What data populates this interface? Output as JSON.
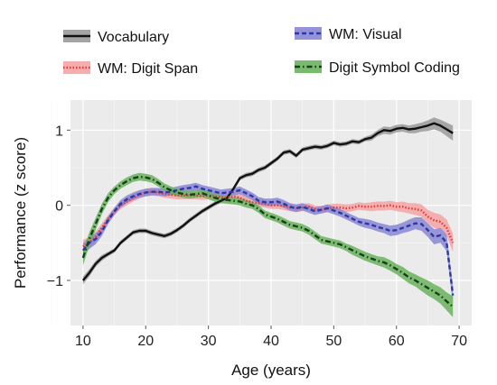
{
  "chart_data": {
    "type": "line",
    "xlabel": "Age (years)",
    "ylabel": "Performance (z score)",
    "xlim": [
      8,
      72
    ],
    "ylim": [
      -1.6,
      1.4
    ],
    "xticks": [
      10,
      20,
      30,
      40,
      50,
      60,
      70
    ],
    "yticks": [
      -1,
      0,
      1
    ],
    "ytick_labels": [
      "−1",
      "0",
      "1"
    ],
    "grid": true,
    "legend_position": "top",
    "series": [
      {
        "name": "Vocabulary",
        "color": "#111111",
        "band_color": "#9a9a9a",
        "line_style": "solid",
        "x": [
          10,
          11,
          12,
          13,
          14,
          15,
          16,
          17,
          18,
          19,
          20,
          21,
          22,
          23,
          24,
          25,
          26,
          27,
          28,
          29,
          30,
          31,
          32,
          33,
          34,
          35,
          36,
          37,
          38,
          39,
          40,
          41,
          42,
          43,
          44,
          45,
          46,
          47,
          48,
          49,
          50,
          51,
          52,
          53,
          54,
          55,
          56,
          57,
          58,
          59,
          60,
          61,
          62,
          63,
          64,
          65,
          66,
          67,
          68,
          69
        ],
        "y": [
          -1.0,
          -0.9,
          -0.78,
          -0.7,
          -0.65,
          -0.6,
          -0.5,
          -0.43,
          -0.36,
          -0.34,
          -0.34,
          -0.37,
          -0.39,
          -0.41,
          -0.38,
          -0.33,
          -0.27,
          -0.2,
          -0.14,
          -0.08,
          -0.03,
          0.02,
          0.06,
          0.1,
          0.22,
          0.36,
          0.4,
          0.42,
          0.47,
          0.5,
          0.56,
          0.62,
          0.7,
          0.72,
          0.66,
          0.74,
          0.76,
          0.78,
          0.77,
          0.79,
          0.83,
          0.81,
          0.82,
          0.85,
          0.84,
          0.88,
          0.9,
          0.96,
          1.0,
          0.99,
          1.02,
          1.03,
          1.01,
          1.02,
          1.04,
          1.06,
          1.09,
          1.06,
          1.01,
          0.96
        ],
        "band": [
          0.05,
          0.05,
          0.04,
          0.04,
          0.03,
          0.03,
          0.03,
          0.03,
          0.03,
          0.03,
          0.03,
          0.03,
          0.03,
          0.03,
          0.03,
          0.03,
          0.03,
          0.03,
          0.03,
          0.03,
          0.03,
          0.03,
          0.03,
          0.03,
          0.03,
          0.03,
          0.03,
          0.03,
          0.03,
          0.03,
          0.03,
          0.03,
          0.03,
          0.03,
          0.03,
          0.03,
          0.03,
          0.03,
          0.03,
          0.03,
          0.03,
          0.03,
          0.03,
          0.03,
          0.03,
          0.03,
          0.04,
          0.04,
          0.05,
          0.05,
          0.05,
          0.05,
          0.05,
          0.06,
          0.06,
          0.07,
          0.08,
          0.08,
          0.09,
          0.1
        ]
      },
      {
        "name": "WM: Digit Span",
        "color": "#e23a3a",
        "band_color": "#f4a4a4",
        "line_style": "dotted",
        "x": [
          10,
          11,
          12,
          13,
          14,
          15,
          16,
          17,
          18,
          19,
          20,
          21,
          22,
          23,
          24,
          25,
          26,
          27,
          28,
          29,
          30,
          31,
          32,
          33,
          34,
          35,
          36,
          37,
          38,
          39,
          40,
          41,
          42,
          43,
          44,
          45,
          46,
          47,
          48,
          49,
          50,
          51,
          52,
          53,
          54,
          55,
          56,
          57,
          58,
          59,
          60,
          61,
          62,
          63,
          64,
          65,
          66,
          67,
          68,
          69
        ],
        "y": [
          -0.55,
          -0.5,
          -0.42,
          -0.3,
          -0.18,
          -0.08,
          0.0,
          0.05,
          0.1,
          0.14,
          0.17,
          0.18,
          0.17,
          0.15,
          0.14,
          0.13,
          0.13,
          0.13,
          0.13,
          0.12,
          0.13,
          0.12,
          0.11,
          0.1,
          0.12,
          0.1,
          0.06,
          0.04,
          0.03,
          0.02,
          0.0,
          0.0,
          -0.01,
          -0.03,
          -0.04,
          -0.03,
          -0.02,
          -0.05,
          -0.06,
          -0.04,
          -0.03,
          -0.03,
          -0.04,
          -0.03,
          -0.01,
          -0.02,
          -0.02,
          -0.01,
          -0.01,
          0.0,
          -0.02,
          -0.02,
          -0.04,
          -0.05,
          -0.07,
          -0.15,
          -0.2,
          -0.22,
          -0.3,
          -0.5
        ],
        "band": [
          0.09,
          0.08,
          0.07,
          0.06,
          0.05,
          0.05,
          0.05,
          0.05,
          0.05,
          0.05,
          0.05,
          0.05,
          0.05,
          0.05,
          0.05,
          0.05,
          0.05,
          0.05,
          0.05,
          0.05,
          0.05,
          0.05,
          0.05,
          0.05,
          0.05,
          0.05,
          0.05,
          0.05,
          0.05,
          0.05,
          0.05,
          0.05,
          0.05,
          0.05,
          0.05,
          0.05,
          0.05,
          0.05,
          0.05,
          0.05,
          0.05,
          0.05,
          0.05,
          0.05,
          0.05,
          0.05,
          0.06,
          0.06,
          0.06,
          0.06,
          0.06,
          0.07,
          0.07,
          0.08,
          0.08,
          0.09,
          0.1,
          0.1,
          0.11,
          0.12
        ]
      },
      {
        "name": "WM: Visual",
        "color": "#2c3a9f",
        "band_color": "#8a86d6",
        "line_style": "dashed",
        "x": [
          10,
          11,
          12,
          13,
          14,
          15,
          16,
          17,
          18,
          19,
          20,
          21,
          22,
          23,
          24,
          25,
          26,
          27,
          28,
          29,
          30,
          31,
          32,
          33,
          34,
          35,
          36,
          37,
          38,
          39,
          40,
          41,
          42,
          43,
          44,
          45,
          46,
          47,
          48,
          49,
          50,
          51,
          52,
          53,
          54,
          55,
          56,
          57,
          58,
          59,
          60,
          61,
          62,
          63,
          64,
          65,
          66,
          67,
          68,
          69
        ],
        "y": [
          -0.6,
          -0.5,
          -0.45,
          -0.35,
          -0.2,
          -0.08,
          0.02,
          0.08,
          0.12,
          0.15,
          0.17,
          0.18,
          0.18,
          0.17,
          0.18,
          0.2,
          0.22,
          0.23,
          0.25,
          0.22,
          0.2,
          0.18,
          0.16,
          0.17,
          0.18,
          0.2,
          0.16,
          0.12,
          0.06,
          0.04,
          0.04,
          0.05,
          0.02,
          -0.02,
          -0.04,
          -0.02,
          -0.05,
          -0.08,
          -0.06,
          -0.04,
          -0.07,
          -0.1,
          -0.14,
          -0.18,
          -0.22,
          -0.24,
          -0.26,
          -0.29,
          -0.31,
          -0.34,
          -0.33,
          -0.3,
          -0.27,
          -0.24,
          -0.25,
          -0.33,
          -0.42,
          -0.4,
          -0.5,
          -1.2
        ],
        "band": [
          0.09,
          0.08,
          0.07,
          0.06,
          0.05,
          0.05,
          0.05,
          0.05,
          0.05,
          0.05,
          0.05,
          0.05,
          0.05,
          0.05,
          0.05,
          0.05,
          0.05,
          0.05,
          0.05,
          0.05,
          0.05,
          0.05,
          0.05,
          0.05,
          0.05,
          0.05,
          0.05,
          0.05,
          0.05,
          0.05,
          0.05,
          0.05,
          0.05,
          0.05,
          0.05,
          0.05,
          0.05,
          0.05,
          0.05,
          0.05,
          0.05,
          0.05,
          0.05,
          0.05,
          0.05,
          0.06,
          0.06,
          0.06,
          0.06,
          0.07,
          0.07,
          0.07,
          0.08,
          0.08,
          0.09,
          0.09,
          0.1,
          0.1,
          0.11,
          0.12
        ]
      },
      {
        "name": "Digit Symbol Coding",
        "color": "#163f1a",
        "band_color": "#6ab35e",
        "line_style": "dashdot",
        "x": [
          10,
          11,
          12,
          13,
          14,
          15,
          16,
          17,
          18,
          19,
          20,
          21,
          22,
          23,
          24,
          25,
          26,
          27,
          28,
          29,
          30,
          31,
          32,
          33,
          34,
          35,
          36,
          37,
          38,
          39,
          40,
          41,
          42,
          43,
          44,
          45,
          46,
          47,
          48,
          49,
          50,
          51,
          52,
          53,
          54,
          55,
          56,
          57,
          58,
          59,
          60,
          61,
          62,
          63,
          64,
          65,
          66,
          67,
          68,
          69
        ],
        "y": [
          -0.7,
          -0.45,
          -0.25,
          -0.05,
          0.1,
          0.2,
          0.27,
          0.32,
          0.36,
          0.38,
          0.37,
          0.35,
          0.3,
          0.24,
          0.2,
          0.17,
          0.15,
          0.14,
          0.15,
          0.16,
          0.13,
          0.1,
          0.08,
          0.07,
          0.06,
          0.05,
          0.02,
          0.0,
          -0.05,
          -0.12,
          -0.15,
          -0.18,
          -0.22,
          -0.26,
          -0.28,
          -0.3,
          -0.34,
          -0.4,
          -0.46,
          -0.48,
          -0.5,
          -0.52,
          -0.56,
          -0.6,
          -0.64,
          -0.68,
          -0.71,
          -0.74,
          -0.76,
          -0.8,
          -0.85,
          -0.9,
          -0.96,
          -1.0,
          -1.05,
          -1.1,
          -1.15,
          -1.2,
          -1.28,
          -1.35
        ],
        "band": [
          0.1,
          0.09,
          0.08,
          0.07,
          0.06,
          0.05,
          0.05,
          0.05,
          0.05,
          0.05,
          0.05,
          0.05,
          0.05,
          0.05,
          0.05,
          0.05,
          0.05,
          0.05,
          0.05,
          0.05,
          0.05,
          0.05,
          0.05,
          0.05,
          0.05,
          0.05,
          0.05,
          0.05,
          0.05,
          0.05,
          0.05,
          0.05,
          0.05,
          0.05,
          0.05,
          0.05,
          0.05,
          0.05,
          0.05,
          0.05,
          0.05,
          0.05,
          0.05,
          0.06,
          0.06,
          0.06,
          0.06,
          0.06,
          0.07,
          0.07,
          0.07,
          0.08,
          0.08,
          0.08,
          0.09,
          0.1,
          0.1,
          0.11,
          0.12,
          0.14
        ]
      }
    ]
  }
}
